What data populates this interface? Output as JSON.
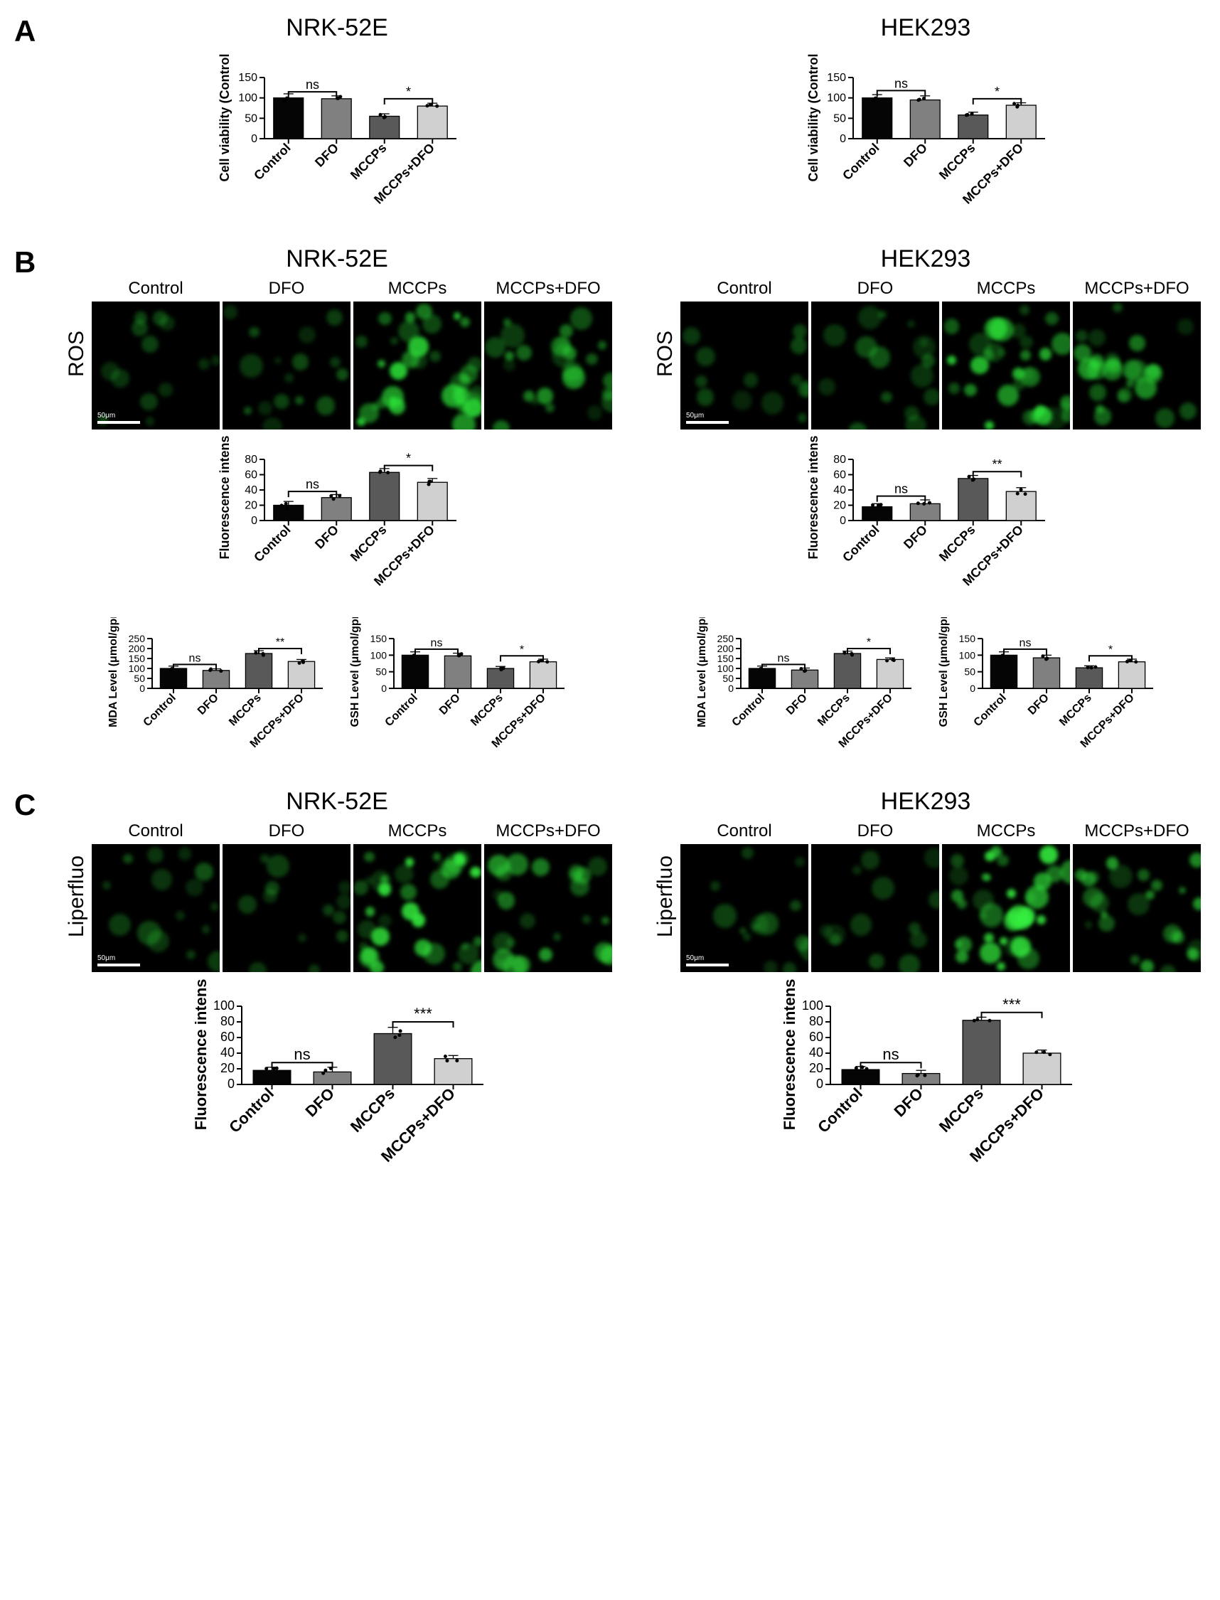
{
  "categories": [
    "Control",
    "DFO",
    "MCCPs",
    "MCCPs+DFO"
  ],
  "bar_colors": [
    "#050505",
    "#808080",
    "#595959",
    "#d0d0d0"
  ],
  "bar_stroke": "#000000",
  "bar_width": 0.62,
  "background_color": "#ffffff",
  "axis_color": "#000000",
  "font_family": "Arial",
  "tick_fontsize": 16,
  "category_fontsize": 18,
  "ylabel_fontsize": 20,
  "sig_fontsize": 18,
  "panel_label_fontsize": 42,
  "cell_title_fontsize": 34,
  "micro_header_fontsize": 24,
  "panels": {
    "A": {
      "label": "A",
      "cells": [
        {
          "title": "NRK-52E",
          "chart": {
            "type": "bar",
            "ylabel": "Cell viability (Control %)",
            "ylim": [
              0,
              150
            ],
            "ytick_step": 50,
            "values": [
              100,
              98,
              55,
              80
            ],
            "errors": [
              10,
              7,
              6,
              7
            ],
            "sig": [
              {
                "from": 0,
                "to": 1,
                "label": "ns",
                "y": 115
              },
              {
                "from": 2,
                "to": 3,
                "label": "*",
                "y": 98
              }
            ]
          }
        },
        {
          "title": "HEK293",
          "chart": {
            "type": "bar",
            "ylabel": "Cell viability (Control %)",
            "ylim": [
              0,
              150
            ],
            "ytick_step": 50,
            "values": [
              100,
              95,
              58,
              82
            ],
            "errors": [
              8,
              10,
              7,
              6
            ],
            "sig": [
              {
                "from": 0,
                "to": 1,
                "label": "ns",
                "y": 118
              },
              {
                "from": 2,
                "to": 3,
                "label": "*",
                "y": 98
              }
            ]
          }
        }
      ]
    },
    "B": {
      "label": "B",
      "row_label": "ROS",
      "micro_intensity_map": {
        "Control": 0.18,
        "DFO": 0.25,
        "MCCPs": 0.82,
        "MCCPs+DFO": 0.55
      },
      "green": "#2ee83a",
      "green_dim": "#0c3b0e",
      "cells": [
        {
          "title": "NRK-52E",
          "charts": [
            {
              "type": "bar",
              "ylabel": "Fluorescence intensity",
              "ylim": [
                0,
                80
              ],
              "ytick_step": 20,
              "values": [
                20,
                30,
                63,
                50
              ],
              "errors": [
                5,
                4,
                5,
                5
              ],
              "sig": [
                {
                  "from": 0,
                  "to": 1,
                  "label": "ns",
                  "y": 38
                },
                {
                  "from": 2,
                  "to": 3,
                  "label": "*",
                  "y": 72
                }
              ]
            },
            {
              "type": "bar",
              "ylabel": "MDA Level (μmol/gprot)",
              "ylim": [
                0,
                250
              ],
              "ytick_step": 50,
              "values": [
                100,
                90,
                175,
                135
              ],
              "errors": [
                12,
                8,
                14,
                10
              ],
              "sig": [
                {
                  "from": 0,
                  "to": 1,
                  "label": "ns",
                  "y": 120
                },
                {
                  "from": 2,
                  "to": 3,
                  "label": "**",
                  "y": 200
                }
              ]
            },
            {
              "type": "bar",
              "ylabel": "GSH Level (μmol/gprot)",
              "ylim": [
                0,
                150
              ],
              "ytick_step": 50,
              "values": [
                100,
                98,
                60,
                80
              ],
              "errors": [
                10,
                8,
                6,
                8
              ],
              "sig": [
                {
                  "from": 0,
                  "to": 1,
                  "label": "ns",
                  "y": 118
                },
                {
                  "from": 2,
                  "to": 3,
                  "label": "*",
                  "y": 98
                }
              ]
            }
          ]
        },
        {
          "title": "HEK293",
          "charts": [
            {
              "type": "bar",
              "ylabel": "Fluorescence intensity",
              "ylim": [
                0,
                80
              ],
              "ytick_step": 20,
              "values": [
                18,
                22,
                55,
                38
              ],
              "errors": [
                4,
                5,
                4,
                5
              ],
              "sig": [
                {
                  "from": 0,
                  "to": 1,
                  "label": "ns",
                  "y": 32
                },
                {
                  "from": 2,
                  "to": 3,
                  "label": "**",
                  "y": 64
                }
              ]
            },
            {
              "type": "bar",
              "ylabel": "MDA Level (μmol/gprot)",
              "ylim": [
                0,
                250
              ],
              "ytick_step": 50,
              "values": [
                100,
                92,
                175,
                145
              ],
              "errors": [
                12,
                10,
                12,
                8
              ],
              "sig": [
                {
                  "from": 0,
                  "to": 1,
                  "label": "ns",
                  "y": 120
                },
                {
                  "from": 2,
                  "to": 3,
                  "label": "*",
                  "y": 200
                }
              ]
            },
            {
              "type": "bar",
              "ylabel": "GSH Level (μmol/gprot)",
              "ylim": [
                0,
                150
              ],
              "ytick_step": 50,
              "values": [
                100,
                92,
                62,
                80
              ],
              "errors": [
                10,
                8,
                6,
                8
              ],
              "sig": [
                {
                  "from": 0,
                  "to": 1,
                  "label": "ns",
                  "y": 118
                },
                {
                  "from": 2,
                  "to": 3,
                  "label": "*",
                  "y": 98
                }
              ]
            }
          ]
        }
      ]
    },
    "C": {
      "label": "C",
      "row_label": "Liperfluo",
      "micro_intensity_map": {
        "Control": 0.22,
        "DFO": 0.18,
        "MCCPs": 0.88,
        "MCCPs+DFO": 0.55
      },
      "green": "#35f03f",
      "green_dim": "#0c3b0e",
      "cells": [
        {
          "title": "NRK-52E",
          "chart": {
            "type": "bar",
            "ylabel": "Fluorescence intensity",
            "ylim": [
              0,
              100
            ],
            "ytick_step": 20,
            "values": [
              18,
              16,
              65,
              33
            ],
            "errors": [
              4,
              6,
              8,
              4
            ],
            "sig": [
              {
                "from": 0,
                "to": 1,
                "label": "ns",
                "y": 28
              },
              {
                "from": 2,
                "to": 3,
                "label": "***",
                "y": 80
              }
            ]
          }
        },
        {
          "title": "HEK293",
          "chart": {
            "type": "bar",
            "ylabel": "Fluorescence intensity",
            "ylim": [
              0,
              100
            ],
            "ytick_step": 20,
            "values": [
              19,
              14,
              82,
              40
            ],
            "errors": [
              4,
              4,
              4,
              4
            ],
            "sig": [
              {
                "from": 0,
                "to": 1,
                "label": "ns",
                "y": 28
              },
              {
                "from": 2,
                "to": 3,
                "label": "***",
                "y": 92
              }
            ]
          }
        }
      ]
    }
  },
  "scale_bar_label": "50μm"
}
